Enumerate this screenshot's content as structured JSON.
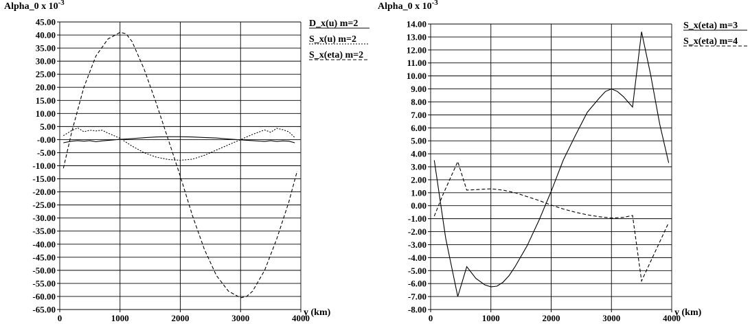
{
  "chart_data": [
    {
      "type": "line",
      "title_base": "Alpha_0 x 10",
      "title_exp": "-3",
      "xlabel": "y (km)",
      "ylabel": "",
      "xlim": [
        0,
        4000
      ],
      "ylim": [
        -65,
        45
      ],
      "y_ticks": [
        "45.00",
        "40.00",
        "35.00",
        "30.00",
        "25.00",
        "20.00",
        "15.00",
        "10.00",
        "5.00",
        "-0.00",
        "-5.00",
        "-10.00",
        "-15.00",
        "-20.00",
        "-25.00",
        "-30.00",
        "-35.00",
        "-40.00",
        "-45.00",
        "-50.00",
        "-55.00",
        "-60.00",
        "-65.00"
      ],
      "x_ticks": [
        "0",
        "1000",
        "2000",
        "3000",
        "4000"
      ],
      "grid": true,
      "legend_position": "right",
      "series": [
        {
          "name": "D_x(u) m=2",
          "style": "solid",
          "x": [
            60,
            200,
            300,
            400,
            500,
            600,
            700,
            800,
            900,
            1000,
            1200,
            1400,
            1600,
            1800,
            2000,
            2200,
            2400,
            2600,
            2800,
            3000,
            3200,
            3400,
            3500,
            3600,
            3700,
            3800,
            3900
          ],
          "y": [
            -1.2,
            -0.6,
            -0.4,
            -0.6,
            -0.4,
            -0.8,
            -0.5,
            -0.3,
            -0.1,
            0.1,
            0.4,
            0.7,
            1.0,
            1.1,
            1.1,
            1.0,
            0.8,
            0.6,
            0.2,
            -0.1,
            -0.4,
            -0.7,
            -0.4,
            -0.7,
            -0.5,
            -0.6,
            -1.2
          ]
        },
        {
          "name": "S_x(u) m=2",
          "style": "dotted",
          "x": [
            60,
            200,
            300,
            400,
            500,
            600,
            700,
            800,
            1000,
            1200,
            1400,
            1600,
            1800,
            2000,
            2200,
            2400,
            2600,
            2800,
            3000,
            3200,
            3400,
            3500,
            3600,
            3700,
            3800,
            3900
          ],
          "y": [
            1.5,
            3.5,
            4.5,
            3.0,
            3.6,
            3.3,
            3.6,
            2.5,
            0.5,
            -2.5,
            -5.0,
            -6.7,
            -7.6,
            -7.9,
            -7.5,
            -6.0,
            -4.0,
            -2.0,
            0.0,
            2.0,
            3.7,
            2.8,
            4.3,
            3.8,
            3.0,
            0.8
          ]
        },
        {
          "name": "S_x(eta) m=2",
          "style": "dashed",
          "x": [
            60,
            200,
            400,
            600,
            800,
            1000,
            1100,
            1200,
            1400,
            1600,
            1800,
            2000,
            2200,
            2400,
            2600,
            2800,
            3000,
            3100,
            3200,
            3400,
            3600,
            3800,
            3940
          ],
          "y": [
            -11.0,
            3.0,
            20.0,
            32.0,
            38.5,
            41.0,
            40.5,
            37.5,
            27.0,
            14.0,
            0.0,
            -14.0,
            -29.0,
            -42.0,
            -52.0,
            -58.0,
            -60.5,
            -60.0,
            -58.0,
            -50.0,
            -38.0,
            -24.0,
            -12.0
          ]
        }
      ]
    },
    {
      "type": "line",
      "title_base": "Alpha_0 x 10",
      "title_exp": "-3",
      "xlabel": "y (km)",
      "ylabel": "",
      "xlim": [
        0,
        4000
      ],
      "ylim": [
        -8,
        14
      ],
      "y_ticks": [
        "14.00",
        "13.00",
        "12.00",
        "11.00",
        "10.00",
        "9.00",
        "8.00",
        "7.00",
        "6.00",
        "5.00",
        "4.00",
        "3.00",
        "2.00",
        "1.00",
        "0.00",
        "-1.00",
        "-2.00",
        "-3.00",
        "-4.00",
        "-5.00",
        "-6.00",
        "-7.00",
        "-8.00"
      ],
      "x_ticks": [
        "0",
        "1000",
        "2000",
        "3000",
        "4000"
      ],
      "grid": true,
      "legend_position": "right",
      "series": [
        {
          "name": "S_x(eta) m=3",
          "style": "solid",
          "x": [
            60,
            250,
            450,
            600,
            750,
            900,
            1000,
            1100,
            1200,
            1300,
            1400,
            1500,
            1600,
            1700,
            1800,
            1900,
            2000,
            2200,
            2400,
            2600,
            2800,
            2900,
            3000,
            3100,
            3200,
            3350,
            3500,
            3650,
            3800,
            3950
          ],
          "y": [
            3.5,
            -2.5,
            -7.0,
            -4.7,
            -5.6,
            -6.1,
            -6.25,
            -6.2,
            -5.9,
            -5.4,
            -4.7,
            -3.9,
            -3.1,
            -2.1,
            -1.1,
            0.0,
            1.1,
            3.5,
            5.4,
            7.2,
            8.3,
            8.8,
            9.0,
            8.8,
            8.4,
            7.6,
            13.4,
            10.1,
            6.3,
            3.3
          ]
        },
        {
          "name": "S_x(eta) m=4",
          "style": "dashed",
          "x": [
            60,
            200,
            450,
            600,
            800,
            1000,
            1200,
            1400,
            1600,
            1800,
            2000,
            2200,
            2400,
            2600,
            2800,
            3000,
            3200,
            3350,
            3500,
            3650,
            3800,
            3950
          ],
          "y": [
            -0.8,
            0.8,
            3.4,
            1.2,
            1.25,
            1.3,
            1.2,
            1.0,
            0.7,
            0.4,
            0.05,
            -0.25,
            -0.5,
            -0.7,
            -0.85,
            -0.95,
            -0.9,
            -0.75,
            -5.8,
            -4.3,
            -2.8,
            -1.3
          ]
        }
      ]
    }
  ]
}
